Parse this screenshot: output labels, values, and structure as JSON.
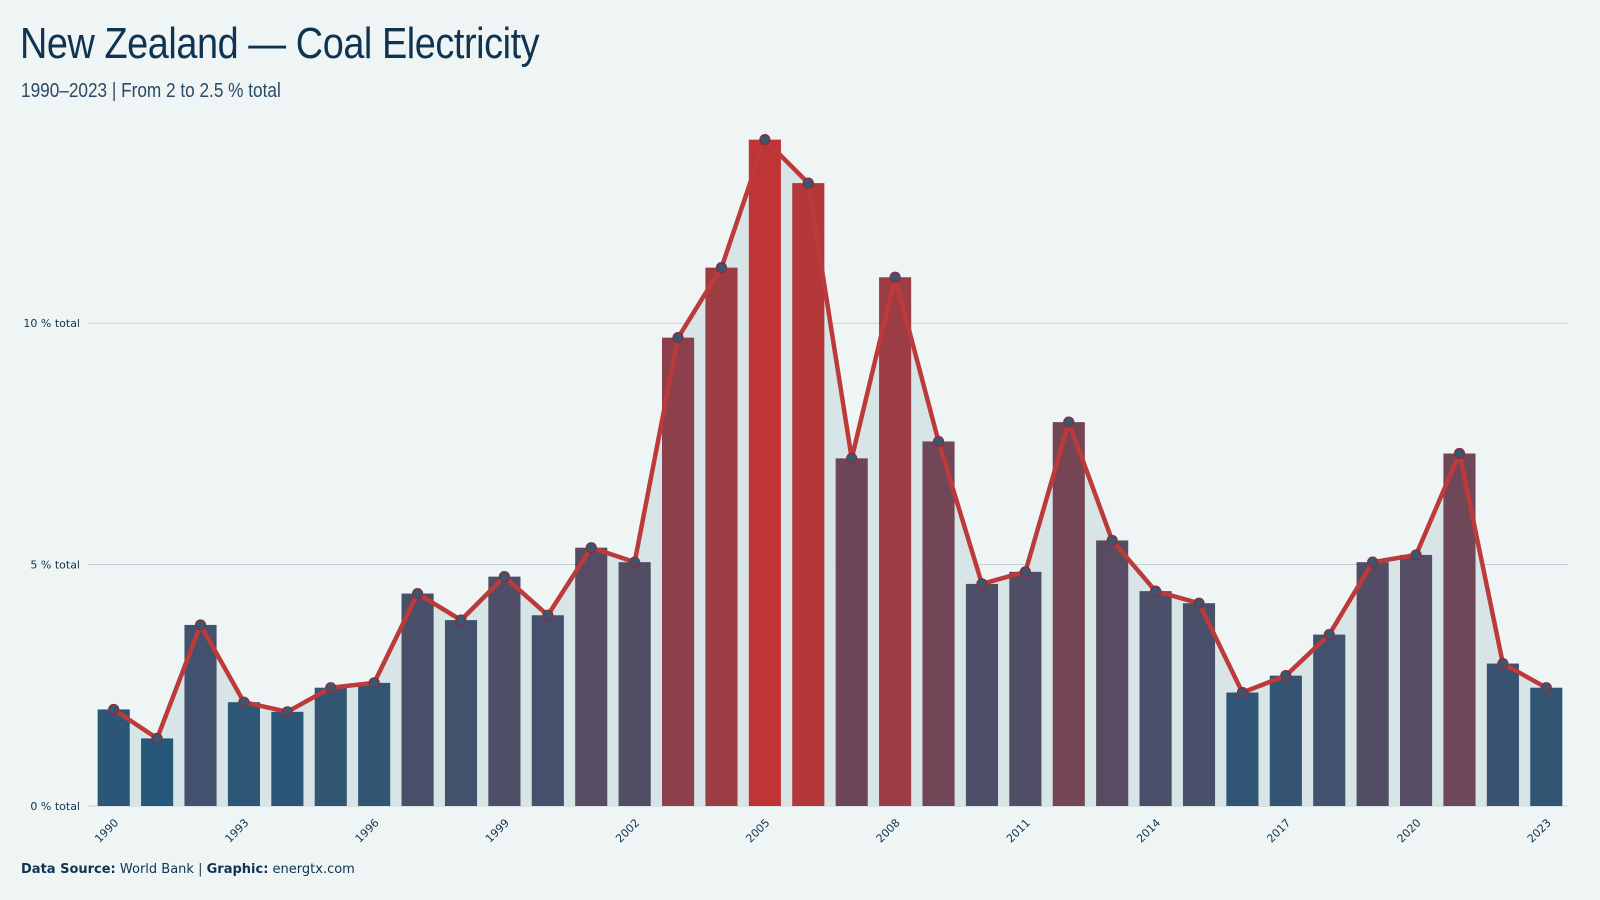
{
  "header": {
    "title": "New Zealand — Coal Electricity",
    "subtitle": "1990–2023 | From 2 to 2.5 % total"
  },
  "caption": {
    "source_label": "Data Source:",
    "source_value": "World Bank",
    "separator": "|",
    "graphic_label": "Graphic:",
    "graphic_value": "energtx.com"
  },
  "colors": {
    "background": "#eff5f5",
    "bar_low": "#25587a",
    "bar_high": "#bf3434",
    "line": "#bd3a3a",
    "point_fill": "#3d5670",
    "area_fill": "#d5e3e5",
    "grid": "#b9c8cc"
  },
  "chart_data": {
    "type": "bar",
    "title": "New Zealand — Coal Electricity",
    "subtitle": "1990–2023 | From 2 to 2.5 % total",
    "xlabel": "",
    "ylabel": "",
    "ylim": [
      0,
      14
    ],
    "y_ticks": [
      0,
      5,
      10
    ],
    "y_tick_labels": [
      "0 % total",
      "5 % total",
      "10 % total"
    ],
    "x_tick_labels": [
      "1990",
      "1993",
      "1996",
      "1999",
      "2002",
      "2005",
      "2008",
      "2011",
      "2014",
      "2017",
      "2020",
      "2023"
    ],
    "grid": true,
    "legend": "none",
    "overlay": "line with point markers over bars",
    "categories": [
      1990,
      1991,
      1992,
      1993,
      1994,
      1995,
      1996,
      1997,
      1998,
      1999,
      2000,
      2001,
      2002,
      2003,
      2004,
      2005,
      2006,
      2007,
      2008,
      2009,
      2010,
      2011,
      2012,
      2013,
      2014,
      2015,
      2016,
      2017,
      2018,
      2019,
      2020,
      2021,
      2022,
      2023
    ],
    "values": [
      2.0,
      1.4,
      3.75,
      2.15,
      1.95,
      2.45,
      2.55,
      4.4,
      3.85,
      4.75,
      3.95,
      5.35,
      5.05,
      9.7,
      11.15,
      13.8,
      12.9,
      7.2,
      10.95,
      7.55,
      4.6,
      4.85,
      7.95,
      5.5,
      4.45,
      4.2,
      2.35,
      2.7,
      3.55,
      5.05,
      5.2,
      7.3,
      2.95,
      2.45
    ]
  }
}
